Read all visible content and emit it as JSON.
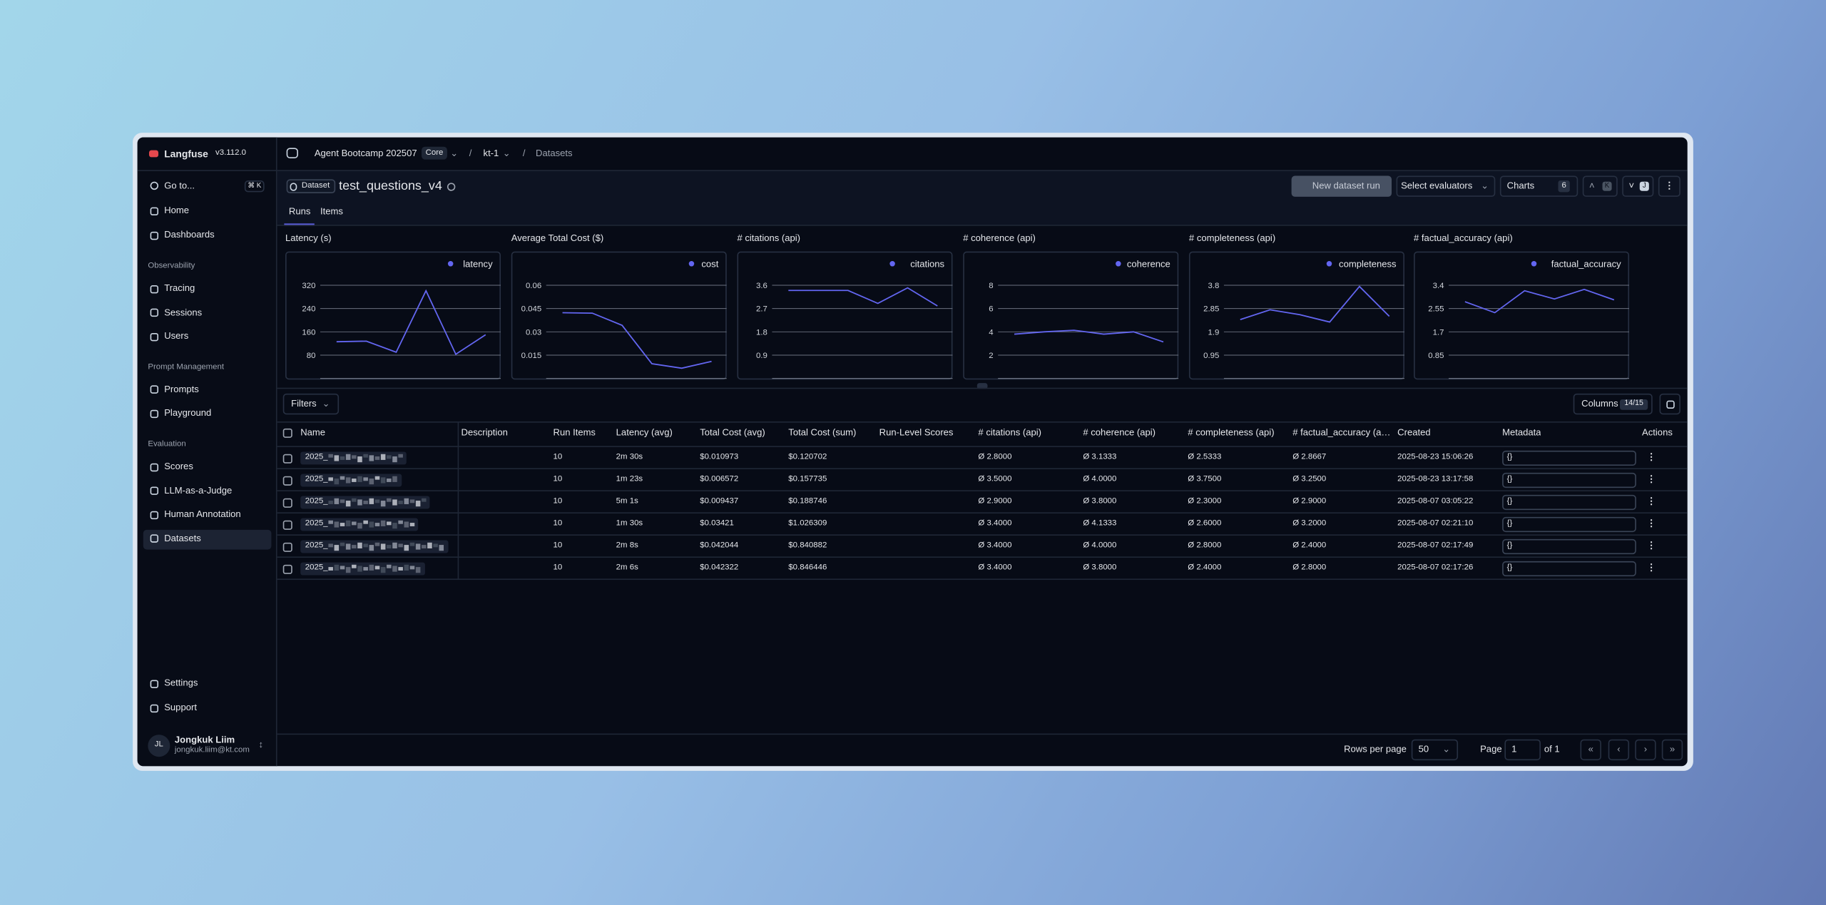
{
  "sidebar": {
    "brand": "Langfuse",
    "version": "v3.112.0",
    "goto": "Go to...",
    "shortcut": "⌘ K",
    "top": [
      "Home",
      "Dashboards"
    ],
    "sections": [
      {
        "title": "Observability",
        "items": [
          "Tracing",
          "Sessions",
          "Users"
        ]
      },
      {
        "title": "Prompt Management",
        "items": [
          "Prompts",
          "Playground"
        ]
      },
      {
        "title": "Evaluation",
        "items": [
          "Scores",
          "LLM-as-a-Judge",
          "Human Annotation",
          "Datasets"
        ]
      }
    ],
    "bottom": [
      "Settings",
      "Support"
    ],
    "user": {
      "initials": "JL",
      "name": "Jongkuk Liim",
      "email": "jongkuk.liim@kt.com"
    }
  },
  "breadcrumb": {
    "project": "Agent Bootcamp 202507",
    "badge": "Core",
    "env": "kt-1",
    "page": "Datasets"
  },
  "header": {
    "badge": "Dataset",
    "title": "test_questions_v4",
    "buttons": {
      "new_run": "New dataset run",
      "evaluators": "Select evaluators",
      "charts": "Charts",
      "charts_count": "6",
      "prev_key": "K",
      "next_key": "J"
    },
    "tabs": [
      "Runs",
      "Items"
    ]
  },
  "charts": [
    {
      "type": "line",
      "title": "Latency (s)",
      "legend": "latency",
      "color": "#6366f1",
      "ylim": [
        0,
        320
      ],
      "yticks": [
        320,
        240,
        160,
        80
      ],
      "values": [
        126,
        128,
        90,
        301,
        83,
        150
      ]
    },
    {
      "type": "line",
      "title": "Average Total Cost ($)",
      "legend": "cost",
      "color": "#6366f1",
      "ylim": [
        0,
        0.06
      ],
      "yticks": [
        0.06,
        0.045,
        0.03,
        0.015
      ],
      "values": [
        0.042322,
        0.042044,
        0.03421,
        0.009437,
        0.006572,
        0.010973
      ]
    },
    {
      "type": "line",
      "title": "# citations (api)",
      "legend": "citations",
      "color": "#6366f1",
      "ylim": [
        0,
        3.6
      ],
      "yticks": [
        3.6,
        2.7,
        1.8,
        0.9
      ],
      "values": [
        3.4,
        3.4,
        3.4,
        2.9,
        3.5,
        2.8
      ]
    },
    {
      "type": "line",
      "title": "# coherence (api)",
      "legend": "coherence",
      "color": "#6366f1",
      "ylim": [
        0,
        8
      ],
      "yticks": [
        8,
        6,
        4,
        2
      ],
      "values": [
        3.8,
        4.0,
        4.1333,
        3.8,
        4.0,
        3.1333
      ]
    },
    {
      "type": "line",
      "title": "# completeness (api)",
      "legend": "completeness",
      "color": "#6366f1",
      "ylim": [
        0,
        3.8
      ],
      "yticks": [
        3.8,
        2.85,
        1.9,
        0.95
      ],
      "values": [
        2.4,
        2.8,
        2.6,
        2.3,
        3.75,
        2.5333
      ]
    },
    {
      "type": "line",
      "title": "# factual_accuracy (api)",
      "legend": "factual_accuracy",
      "color": "#6366f1",
      "ylim": [
        0,
        3.4
      ],
      "yticks": [
        3.4,
        2.55,
        1.7,
        0.85
      ],
      "values": [
        2.8,
        2.4,
        3.2,
        2.9,
        3.25,
        2.8667
      ]
    }
  ],
  "toolbar": {
    "filters": "Filters",
    "columns": "Columns",
    "columns_count": "14/15"
  },
  "table": {
    "columns": [
      "Name",
      "Description",
      "Run Items",
      "Latency (avg)",
      "Total Cost (avg)",
      "Total Cost (sum)",
      "Run-Level Scores",
      "# citations (api)",
      "# coherence (api)",
      "# completeness (api)",
      "# factual_accuracy (a…",
      "Created",
      "Metadata",
      "Actions"
    ],
    "rows": [
      [
        "2025_",
        "",
        "10",
        "2m 30s",
        "$0.010973",
        "$0.120702",
        "",
        "Ø 2.8000",
        "Ø 3.1333",
        "Ø 2.5333",
        "Ø 2.8667",
        "2025-08-23 15:06:26",
        "{}"
      ],
      [
        "2025_",
        "",
        "10",
        "1m 23s",
        "$0.006572",
        "$0.157735",
        "",
        "Ø 3.5000",
        "Ø 4.0000",
        "Ø 3.7500",
        "Ø 3.2500",
        "2025-08-23 13:17:58",
        "{}"
      ],
      [
        "2025_",
        "",
        "10",
        "5m 1s",
        "$0.009437",
        "$0.188746",
        "",
        "Ø 2.9000",
        "Ø 3.8000",
        "Ø 2.3000",
        "Ø 2.9000",
        "2025-08-07 03:05:22",
        "{}"
      ],
      [
        "2025_",
        "",
        "10",
        "1m 30s",
        "$0.03421",
        "$1.026309",
        "",
        "Ø 3.4000",
        "Ø 4.1333",
        "Ø 2.6000",
        "Ø 3.2000",
        "2025-08-07 02:21:10",
        "{}"
      ],
      [
        "2025_",
        "",
        "10",
        "2m 8s",
        "$0.042044",
        "$0.840882",
        "",
        "Ø 3.4000",
        "Ø 4.0000",
        "Ø 2.8000",
        "Ø 2.4000",
        "2025-08-07 02:17:49",
        "{}"
      ],
      [
        "2025_",
        "",
        "10",
        "2m 6s",
        "$0.042322",
        "$0.846446",
        "",
        "Ø 3.4000",
        "Ø 3.8000",
        "Ø 2.4000",
        "Ø 2.8000",
        "2025-08-07 02:17:26",
        "{}"
      ]
    ]
  },
  "pagination": {
    "rows_label": "Rows per page",
    "rows_value": "50",
    "page_label": "Page",
    "page_value": "1",
    "of": "of 1"
  }
}
